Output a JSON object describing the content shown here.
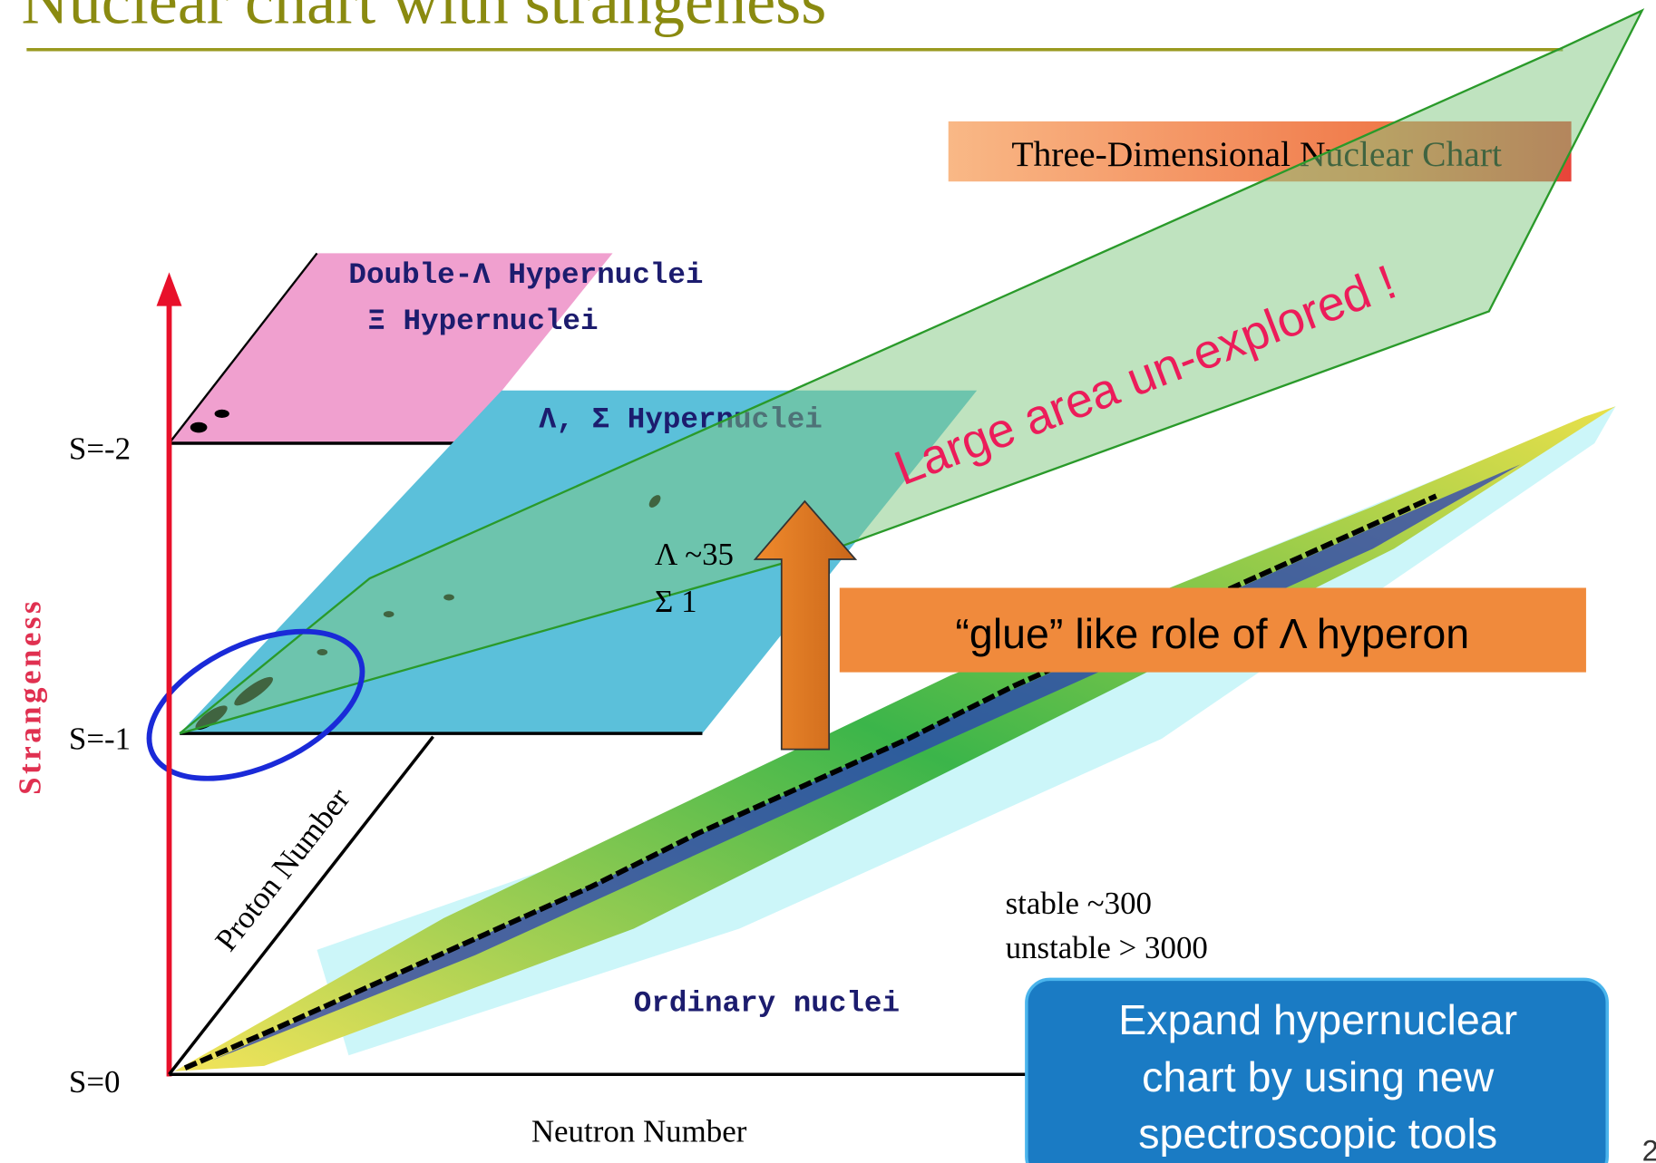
{
  "title": "Nuclear chart with strangeness",
  "chart_label": "Three-Dimensional Nuclear Chart",
  "planes": {
    "double": [
      "Double-Λ Hypernuclei",
      "Ξ Hypernuclei"
    ],
    "single": "Λ, Σ Hypernuclei",
    "ordinary": "Ordinary nuclei"
  },
  "axes": {
    "strangeness": "Strangeness",
    "proton": "Proton Number",
    "neutron": "Neutron Number",
    "levels": [
      "S=-2",
      "S=-1",
      "S=0"
    ]
  },
  "annotations": {
    "unexplored": "Large area un-explored !",
    "lambda": "Λ ~35",
    "sigma": "Σ 1",
    "glue": "“glue” like role of Λ hyperon",
    "stable": "stable ~300",
    "unstable": "unstable > 3000"
  },
  "callout": [
    "Expand hypernuclear",
    "chart by using new",
    "spectroscopic tools"
  ],
  "page_number": "2"
}
